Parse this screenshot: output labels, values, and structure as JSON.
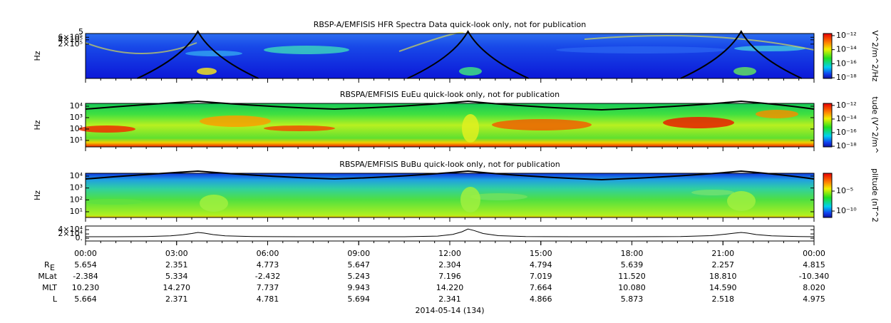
{
  "chart_data": [
    {
      "type": "spectrogram",
      "title": "RBSP-A/EMFISIS  HFR Spectra Data quick-look only, not for publication",
      "y_label": "Hz",
      "log": true,
      "ylim": [
        800,
        1100000
      ],
      "yticks": [
        {
          "value": 200000,
          "label": "2×10⁵"
        },
        {
          "value": 400000,
          "label": "4×10⁵"
        },
        {
          "value": 600000,
          "label": "6×10⁵"
        }
      ],
      "top_label": "5",
      "palette": "hfr",
      "colorbar": {
        "label": "V^2/m^2/Hz",
        "lim": [
          8e-19,
          2e-12
        ],
        "ticks": [
          {
            "value": 1e-12,
            "label": "10⁻¹²"
          },
          {
            "value": 1e-14,
            "label": "10⁻¹⁴"
          },
          {
            "value": 1e-16,
            "label": "10⁻¹⁶"
          },
          {
            "value": 1e-18,
            "label": "10⁻¹⁸"
          }
        ]
      }
    },
    {
      "type": "spectrogram",
      "title": "RBSPA/EMFISIS  EuEu quick-look only, not for publication",
      "y_label": "Hz",
      "log": true,
      "ylim": [
        2.7,
        17800
      ],
      "yticks": [
        {
          "value": 10,
          "label": "10¹"
        },
        {
          "value": 100,
          "label": "10²"
        },
        {
          "value": 1000,
          "label": "10³"
        },
        {
          "value": 10000,
          "label": "10⁴"
        }
      ],
      "palette": "eu",
      "colorbar": {
        "label": "tude (V^2/m^",
        "lim": [
          8e-19,
          2e-12
        ],
        "ticks": [
          {
            "value": 1e-12,
            "label": "10⁻¹²"
          },
          {
            "value": 1e-14,
            "label": "10⁻¹⁴"
          },
          {
            "value": 1e-16,
            "label": "10⁻¹⁶"
          },
          {
            "value": 1e-18,
            "label": "10⁻¹⁸"
          }
        ]
      }
    },
    {
      "type": "spectrogram",
      "title": "RBSPA/EMFISIS  BuBu quick-look only, not for publication",
      "y_label": "Hz",
      "log": true,
      "ylim": [
        3.3,
        17400
      ],
      "yticks": [
        {
          "value": 10,
          "label": "10¹"
        },
        {
          "value": 100,
          "label": "10²"
        },
        {
          "value": 1000,
          "label": "10³"
        },
        {
          "value": 10000,
          "label": "10⁴"
        }
      ],
      "palette": "bu",
      "colorbar": {
        "label": "plitude (nT^2",
        "lim": [
          2.5e-12,
          0.29
        ],
        "ticks": [
          {
            "value": 1e-05,
            "label": "10⁻⁵"
          },
          {
            "value": 1e-10,
            "label": "10⁻¹⁰"
          }
        ]
      }
    },
    {
      "type": "line",
      "color": "#000000",
      "xlim": [
        0,
        24
      ],
      "ylim": [
        -13000,
        57000
      ],
      "yticks": [
        {
          "value": 0,
          "label": "0."
        },
        {
          "value": 20000,
          "label": "2×10⁴"
        },
        {
          "value": 40000,
          "label": "4×10⁴"
        }
      ],
      "x": [
        0,
        1,
        2,
        2.8,
        3.2,
        3.5,
        3.7,
        3.9,
        4.2,
        4.6,
        5.5,
        7,
        9,
        10.5,
        11.6,
        12.1,
        12.4,
        12.6,
        12.8,
        13.1,
        13.6,
        14.5,
        16,
        18,
        19.6,
        20.6,
        21.1,
        21.4,
        21.6,
        21.8,
        22.1,
        22.6,
        23.5,
        24
      ],
      "values": [
        7000,
        7000,
        8000,
        11000,
        16000,
        22000,
        27000,
        24000,
        17000,
        11000,
        8000,
        7000,
        7000,
        7000,
        10000,
        18000,
        30000,
        43000,
        36000,
        22000,
        12000,
        8000,
        7000,
        7000,
        8000,
        12000,
        19000,
        24000,
        27000,
        24000,
        17000,
        11000,
        8000,
        7000
      ]
    }
  ],
  "time_axis": {
    "xlim": [
      0,
      24
    ],
    "ticks": [
      {
        "value": 0,
        "label": "00:00"
      },
      {
        "value": 3,
        "label": "03:00"
      },
      {
        "value": 6,
        "label": "06:00"
      },
      {
        "value": 9,
        "label": "09:00"
      },
      {
        "value": 12,
        "label": "12:00"
      },
      {
        "value": 15,
        "label": "15:00"
      },
      {
        "value": 18,
        "label": "18:00"
      },
      {
        "value": 21,
        "label": "21:00"
      },
      {
        "value": 24,
        "label": "00:00"
      }
    ],
    "rows": [
      {
        "label": "R",
        "subscript": "E",
        "values": [
          "5.654",
          "2.351",
          "4.773",
          "5.647",
          "2.304",
          "4.794",
          "5.639",
          "2.257",
          "4.815"
        ]
      },
      {
        "label": "MLat",
        "values": [
          "-2.384",
          "5.334",
          "-2.432",
          "5.243",
          "7.196",
          "7.019",
          "11.520",
          "18.810",
          "-10.340"
        ]
      },
      {
        "label": "MLT",
        "values": [
          "10.230",
          "14.270",
          "7.737",
          "9.943",
          "14.220",
          "7.664",
          "10.080",
          "14.590",
          "8.020"
        ]
      },
      {
        "label": "L",
        "values": [
          "5.664",
          "2.371",
          "4.781",
          "5.694",
          "2.341",
          "4.866",
          "5.873",
          "2.518",
          "4.975"
        ]
      }
    ],
    "date": "2014-05-14 (134)"
  }
}
